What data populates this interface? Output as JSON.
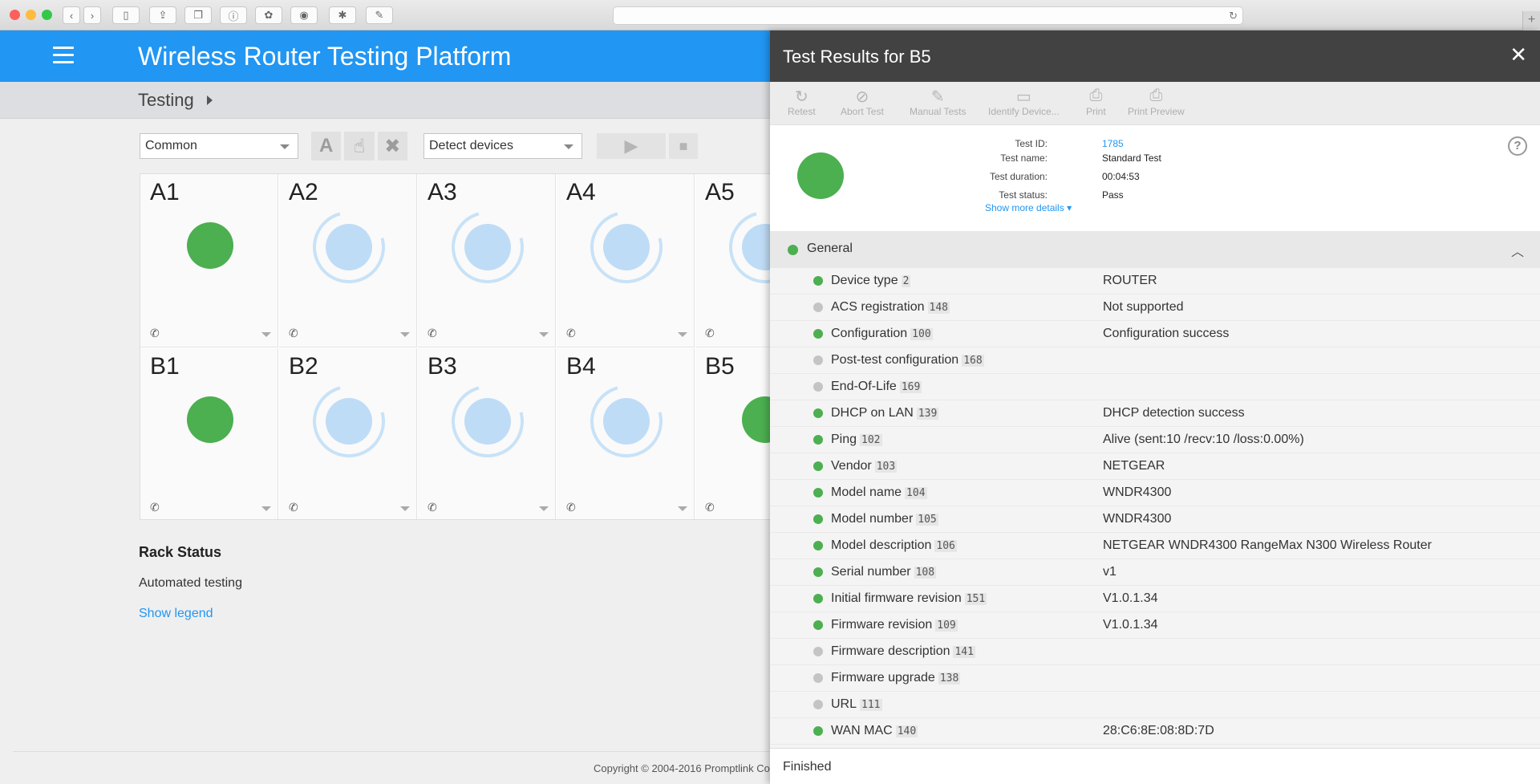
{
  "app": {
    "title": "Wireless Router Testing Platform",
    "breadcrumb": "Testing"
  },
  "controls": {
    "profile_select": "Common",
    "action_select": "Detect devices"
  },
  "grid": {
    "row_a": [
      {
        "label": "A1",
        "status": "pass"
      },
      {
        "label": "A2",
        "status": "idle"
      },
      {
        "label": "A3",
        "status": "idle"
      },
      {
        "label": "A4",
        "status": "idle"
      },
      {
        "label": "A5",
        "status": "idle"
      }
    ],
    "row_b": [
      {
        "label": "B1",
        "status": "pass"
      },
      {
        "label": "B2",
        "status": "idle"
      },
      {
        "label": "B3",
        "status": "idle"
      },
      {
        "label": "B4",
        "status": "idle"
      },
      {
        "label": "B5",
        "status": "pass"
      }
    ]
  },
  "rack": {
    "title": "Rack Status",
    "status": "Automated testing",
    "legend_link": "Show legend"
  },
  "footer": {
    "copyright": "Copyright © 2004-2016 Promptlink Co"
  },
  "panel": {
    "title": "Test Results for B5",
    "toolbar": {
      "retest": "Retest",
      "abort": "Abort Test",
      "manual": "Manual Tests",
      "identify": "Identify Device...",
      "print": "Print",
      "preview": "Print Preview"
    },
    "summary": {
      "test_id_label": "Test ID:",
      "test_id": "1785",
      "test_name_label": "Test name:",
      "test_name": "Standard Test",
      "duration_label": "Test duration:",
      "duration": "00:04:53",
      "status_label": "Test status:",
      "status": "Pass",
      "more": "Show more details"
    },
    "section": "General",
    "rows": [
      {
        "name": "Device type",
        "code": "2",
        "value": "ROUTER",
        "state": "pass"
      },
      {
        "name": "ACS registration",
        "code": "148",
        "value": "Not supported",
        "state": "na"
      },
      {
        "name": "Configuration",
        "code": "100",
        "value": "Configuration success",
        "state": "pass"
      },
      {
        "name": "Post-test configuration",
        "code": "168",
        "value": "",
        "state": "na"
      },
      {
        "name": "End-Of-Life",
        "code": "169",
        "value": "",
        "state": "na"
      },
      {
        "name": "DHCP on LAN",
        "code": "139",
        "value": "DHCP detection success",
        "state": "pass"
      },
      {
        "name": "Ping",
        "code": "102",
        "value": "Alive (sent:10 /recv:10 /loss:0.00%)",
        "state": "pass"
      },
      {
        "name": "Vendor",
        "code": "103",
        "value": "NETGEAR",
        "state": "pass"
      },
      {
        "name": "Model name",
        "code": "104",
        "value": "WNDR4300",
        "state": "pass"
      },
      {
        "name": "Model number",
        "code": "105",
        "value": "WNDR4300",
        "state": "pass"
      },
      {
        "name": "Model description",
        "code": "106",
        "value": "NETGEAR WNDR4300 RangeMax N300 Wireless Router",
        "state": "pass"
      },
      {
        "name": "Serial number",
        "code": "108",
        "value": "v1",
        "state": "pass"
      },
      {
        "name": "Initial firmware revision",
        "code": "151",
        "value": "V1.0.1.34",
        "state": "pass"
      },
      {
        "name": "Firmware revision",
        "code": "109",
        "value": "V1.0.1.34",
        "state": "pass"
      },
      {
        "name": "Firmware description",
        "code": "141",
        "value": "",
        "state": "na"
      },
      {
        "name": "Firmware upgrade",
        "code": "138",
        "value": "",
        "state": "na"
      },
      {
        "name": "URL",
        "code": "111",
        "value": "",
        "state": "na"
      },
      {
        "name": "WAN MAC",
        "code": "140",
        "value": "28:C6:8E:08:8D:7D",
        "state": "pass"
      }
    ],
    "footer_status": "Finished"
  },
  "colors": {
    "primary": "#2196f3",
    "pass": "#4caf50",
    "na": "#c4c4c4",
    "panel_header": "#424242"
  }
}
